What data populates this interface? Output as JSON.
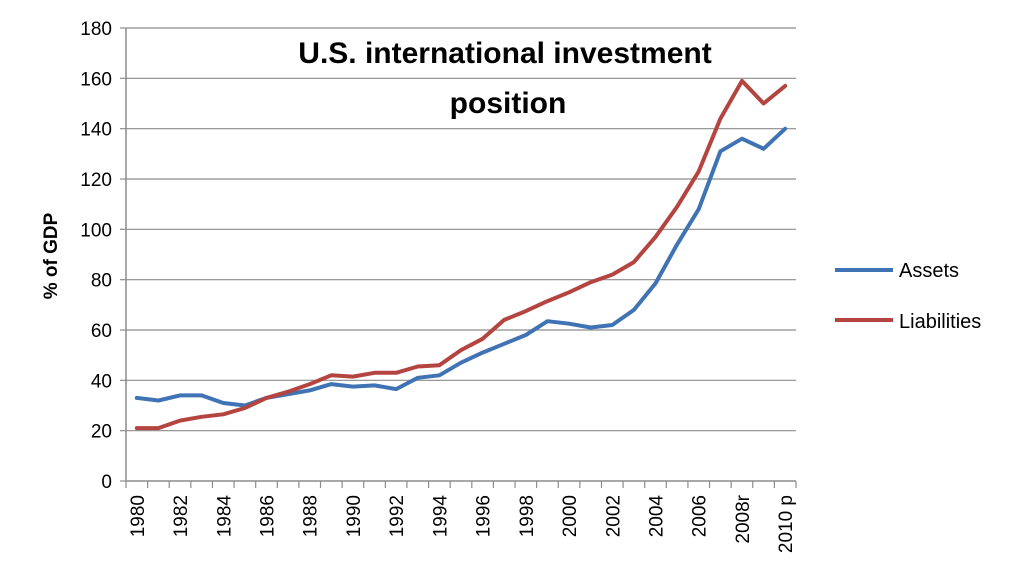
{
  "chart_data": {
    "type": "line",
    "title_lines": [
      "U.S. international investment",
      "position"
    ],
    "xlabel": "",
    "ylabel": "% of GDP",
    "ylim": [
      0,
      180
    ],
    "yticks": [
      0,
      20,
      40,
      60,
      80,
      100,
      120,
      140,
      160,
      180
    ],
    "grid": "horizontal",
    "legend_position": "right",
    "x": [
      "1980",
      "1981",
      "1982",
      "1983",
      "1984",
      "1985",
      "1986",
      "1987",
      "1988",
      "1989",
      "1990",
      "1991",
      "1992",
      "1993",
      "1994",
      "1995",
      "1996",
      "1997",
      "1998",
      "1999",
      "2000",
      "2001",
      "2002",
      "2003",
      "2004",
      "2005",
      "2006",
      "2007",
      "2008r",
      "2009",
      "2010 p"
    ],
    "xtick_labels": [
      "1980",
      "",
      "1982",
      "",
      "1984",
      "",
      "1986",
      "",
      "1988",
      "",
      "1990",
      "",
      "1992",
      "",
      "1994",
      "",
      "1996",
      "",
      "1998",
      "",
      "2000",
      "",
      "2002",
      "",
      "2004",
      "",
      "2006",
      "",
      "2008r",
      "",
      "2010 p"
    ],
    "series": [
      {
        "name": "Assets",
        "color": "#3f73b4",
        "values": [
          33,
          32,
          34,
          34,
          31,
          30,
          33,
          34.5,
          36,
          38.5,
          37.5,
          38,
          36.5,
          41,
          42,
          47,
          51,
          54.5,
          58,
          63.5,
          62.5,
          61,
          62,
          68,
          78.5,
          94,
          108,
          131,
          136,
          132,
          140
        ]
      },
      {
        "name": "Liabilities",
        "color": "#b4443f",
        "values": [
          21,
          21,
          24,
          25.5,
          26.5,
          29,
          33,
          35.5,
          38.5,
          42,
          41.5,
          43,
          43,
          45.5,
          46,
          52,
          56.5,
          64,
          67.5,
          71.5,
          75,
          79,
          82,
          87,
          97,
          109,
          123,
          144,
          159,
          150,
          157
        ]
      }
    ]
  }
}
